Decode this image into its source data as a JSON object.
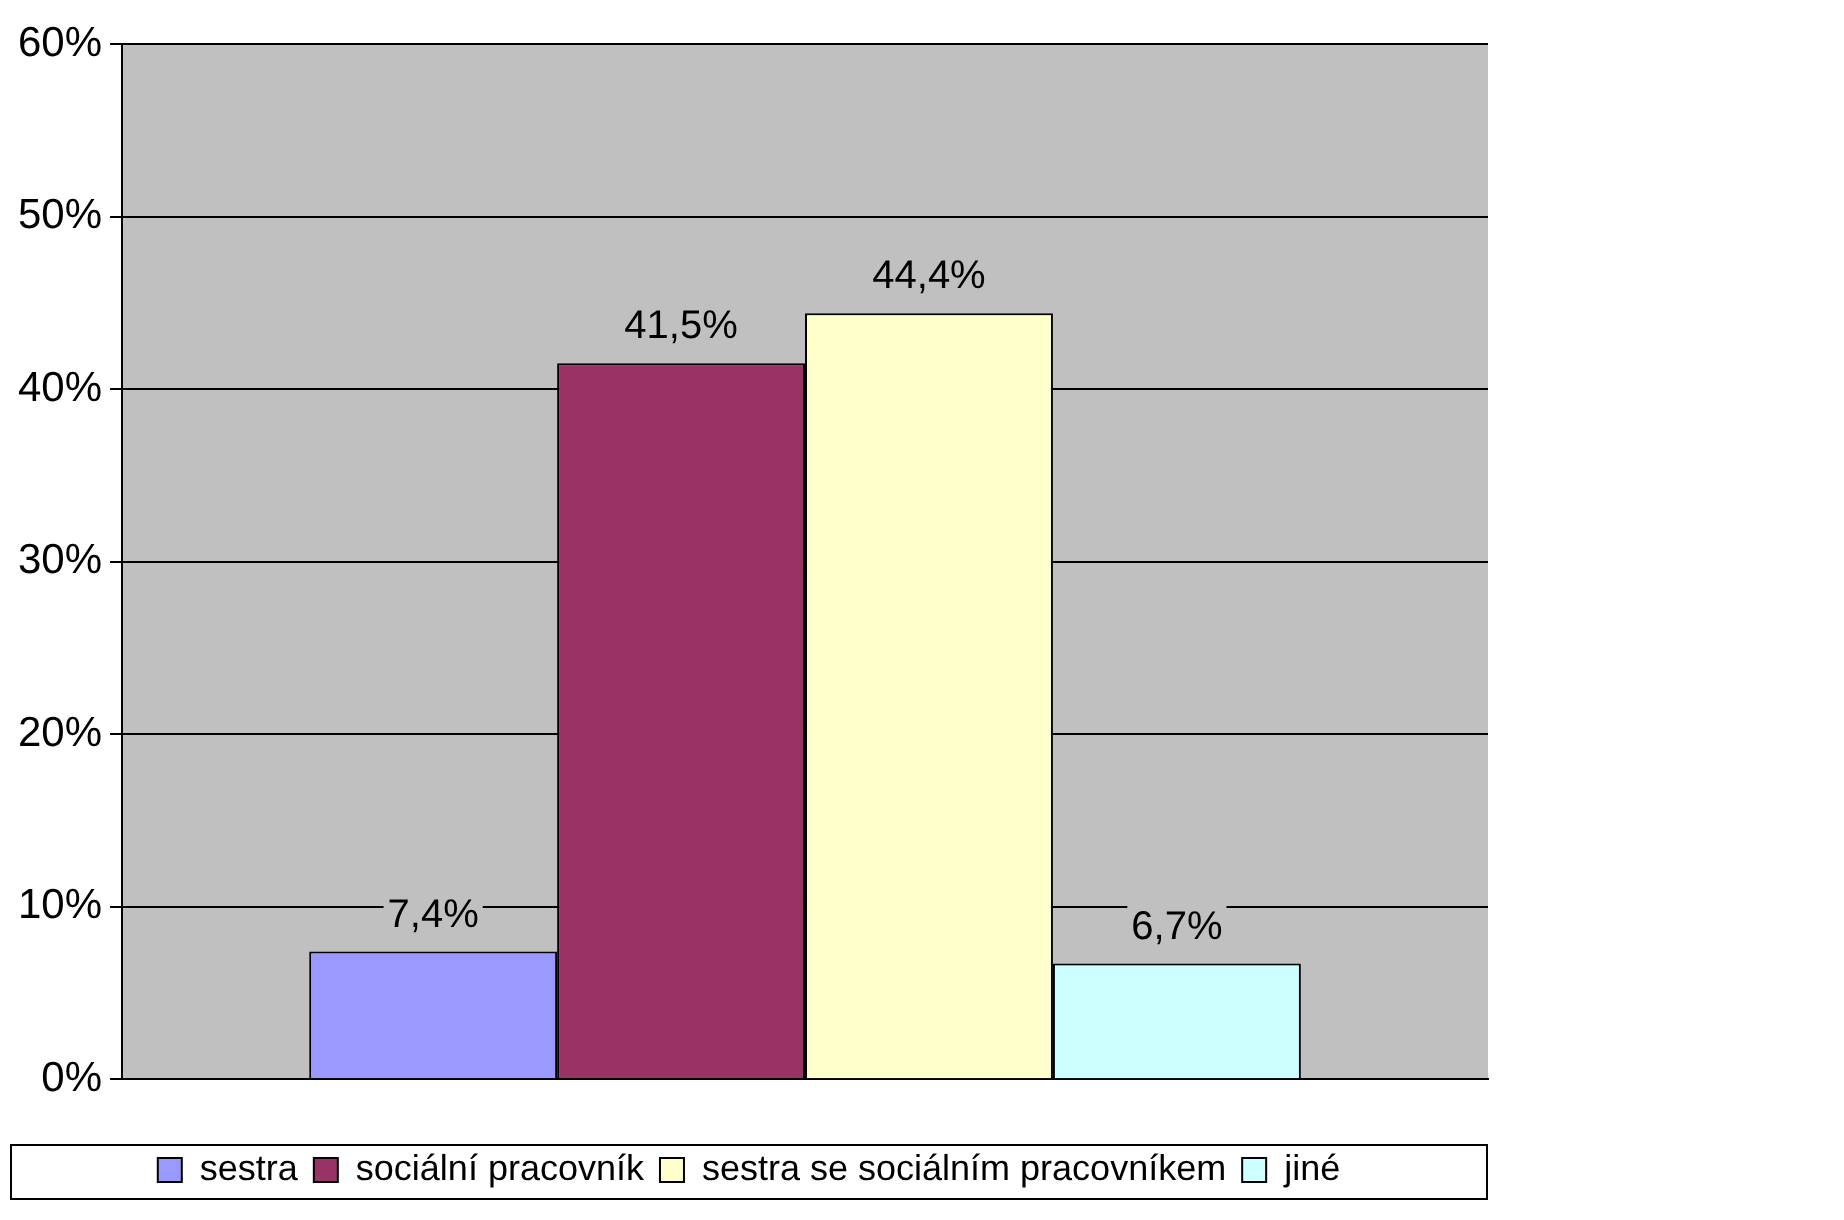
{
  "chart_data": {
    "type": "bar",
    "categories": [
      null
    ],
    "series": [
      {
        "name": "sestra",
        "color": "#9999ff",
        "values": [
          7.4
        ],
        "value_labels": [
          "7,4%"
        ]
      },
      {
        "name": "sociální pracovník",
        "color": "#993366",
        "values": [
          41.5
        ],
        "value_labels": [
          "41,5%"
        ]
      },
      {
        "name": "sestra se sociálním pracovníkem",
        "color": "#ffffcc",
        "values": [
          44.4
        ],
        "value_labels": [
          "44,4%"
        ]
      },
      {
        "name": "jiné",
        "color": "#ccffff",
        "values": [
          6.7
        ],
        "value_labels": [
          "6,7%"
        ]
      }
    ],
    "ylim": [
      0,
      60
    ],
    "yticks": [
      {
        "value": 0,
        "label": "0%"
      },
      {
        "value": 10,
        "label": "10%"
      },
      {
        "value": 20,
        "label": "20%"
      },
      {
        "value": 30,
        "label": "30%"
      },
      {
        "value": 40,
        "label": "40%"
      },
      {
        "value": 50,
        "label": "50%"
      },
      {
        "value": 60,
        "label": "60%"
      }
    ],
    "grid": "y",
    "legend": "bottom"
  }
}
